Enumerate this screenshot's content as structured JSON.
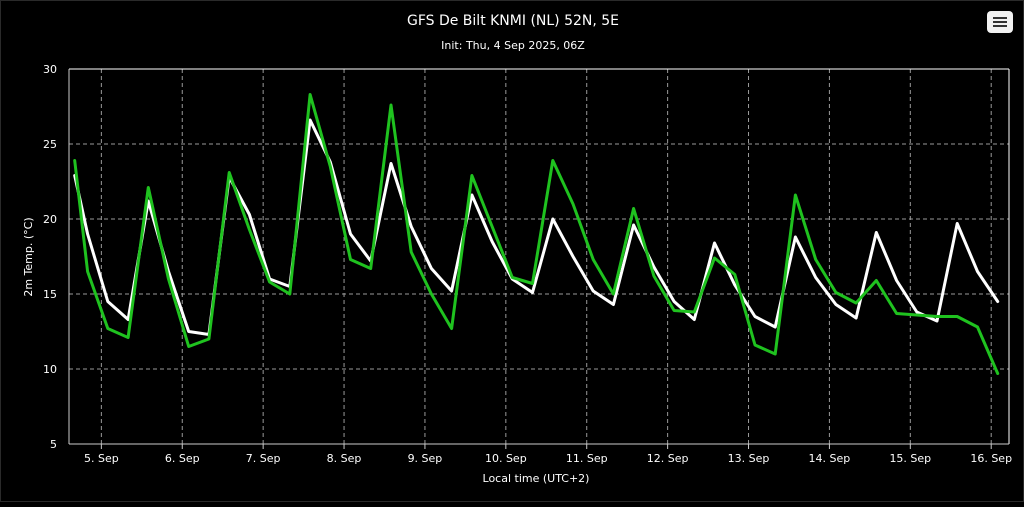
{
  "chart_data": {
    "type": "line",
    "title": "GFS De Bilt KNMI (NL) 52N, 5E",
    "subtitle": "Init: Thu, 4 Sep 2025, 06Z",
    "xlabel": "Local time (UTC+2)",
    "ylabel": "2m Temp. (°C)",
    "ylim": [
      5,
      30
    ],
    "yticks": [
      5,
      10,
      15,
      20,
      25,
      30
    ],
    "xlim": [
      4.6,
      16.22
    ],
    "xticks": [
      {
        "x": 5,
        "label": "5. Sep"
      },
      {
        "x": 6,
        "label": "6. Sep"
      },
      {
        "x": 7,
        "label": "7. Sep"
      },
      {
        "x": 8,
        "label": "8. Sep"
      },
      {
        "x": 9,
        "label": "9. Sep"
      },
      {
        "x": 10,
        "label": "10. Sep"
      },
      {
        "x": 11,
        "label": "11. Sep"
      },
      {
        "x": 12,
        "label": "12. Sep"
      },
      {
        "x": 13,
        "label": "13. Sep"
      },
      {
        "x": 14,
        "label": "14. Sep"
      },
      {
        "x": 15,
        "label": "15. Sep"
      },
      {
        "x": 16,
        "label": "16. Sep"
      }
    ],
    "grid": true,
    "series": [
      {
        "color": "#ffffff",
        "points": [
          [
            4.67,
            22.9
          ],
          [
            4.83,
            19.0
          ],
          [
            5.08,
            14.5
          ],
          [
            5.33,
            13.3
          ],
          [
            5.58,
            21.2
          ],
          [
            5.83,
            16.5
          ],
          [
            6.08,
            12.5
          ],
          [
            6.33,
            12.3
          ],
          [
            6.58,
            22.8
          ],
          [
            6.83,
            20.3
          ],
          [
            7.08,
            16.0
          ],
          [
            7.33,
            15.5
          ],
          [
            7.58,
            26.6
          ],
          [
            7.83,
            23.8
          ],
          [
            8.08,
            19.0
          ],
          [
            8.33,
            17.2
          ],
          [
            8.58,
            23.7
          ],
          [
            8.83,
            19.5
          ],
          [
            9.08,
            16.7
          ],
          [
            9.33,
            15.2
          ],
          [
            9.58,
            21.6
          ],
          [
            9.83,
            18.5
          ],
          [
            10.08,
            16.0
          ],
          [
            10.33,
            15.1
          ],
          [
            10.58,
            20.0
          ],
          [
            10.83,
            17.5
          ],
          [
            11.08,
            15.2
          ],
          [
            11.33,
            14.3
          ],
          [
            11.58,
            19.6
          ],
          [
            11.83,
            16.8
          ],
          [
            12.08,
            14.5
          ],
          [
            12.33,
            13.3
          ],
          [
            12.58,
            18.4
          ],
          [
            12.83,
            15.6
          ],
          [
            13.08,
            13.5
          ],
          [
            13.33,
            12.8
          ],
          [
            13.58,
            18.8
          ],
          [
            13.83,
            16.1
          ],
          [
            14.08,
            14.3
          ],
          [
            14.33,
            13.4
          ],
          [
            14.58,
            19.1
          ],
          [
            14.83,
            15.9
          ],
          [
            15.08,
            13.8
          ],
          [
            15.33,
            13.2
          ],
          [
            15.58,
            19.7
          ],
          [
            15.83,
            16.5
          ],
          [
            16.08,
            14.5
          ]
        ]
      },
      {
        "color": "#1fc21f",
        "points": [
          [
            4.67,
            23.9
          ],
          [
            4.83,
            16.5
          ],
          [
            5.08,
            12.7
          ],
          [
            5.33,
            12.1
          ],
          [
            5.58,
            22.1
          ],
          [
            5.83,
            16.0
          ],
          [
            6.08,
            11.5
          ],
          [
            6.33,
            12.0
          ],
          [
            6.58,
            23.1
          ],
          [
            6.83,
            19.3
          ],
          [
            7.08,
            15.8
          ],
          [
            7.33,
            15.0
          ],
          [
            7.58,
            28.3
          ],
          [
            7.83,
            23.5
          ],
          [
            8.08,
            17.3
          ],
          [
            8.33,
            16.7
          ],
          [
            8.58,
            27.6
          ],
          [
            8.83,
            17.8
          ],
          [
            9.08,
            15.0
          ],
          [
            9.33,
            12.7
          ],
          [
            9.58,
            22.9
          ],
          [
            9.83,
            19.5
          ],
          [
            10.08,
            16.1
          ],
          [
            10.33,
            15.7
          ],
          [
            10.58,
            23.9
          ],
          [
            10.83,
            21.0
          ],
          [
            11.08,
            17.3
          ],
          [
            11.33,
            15.0
          ],
          [
            11.58,
            20.7
          ],
          [
            11.83,
            16.2
          ],
          [
            12.08,
            13.9
          ],
          [
            12.33,
            13.8
          ],
          [
            12.58,
            17.4
          ],
          [
            12.83,
            16.3
          ],
          [
            13.08,
            11.6
          ],
          [
            13.33,
            11.0
          ],
          [
            13.58,
            21.6
          ],
          [
            13.83,
            17.3
          ],
          [
            14.08,
            15.1
          ],
          [
            14.33,
            14.4
          ],
          [
            14.58,
            15.9
          ],
          [
            14.83,
            13.7
          ],
          [
            15.08,
            13.6
          ],
          [
            15.33,
            13.5
          ],
          [
            15.58,
            13.5
          ],
          [
            15.83,
            12.8
          ],
          [
            16.08,
            9.7
          ]
        ]
      }
    ]
  },
  "menu": {
    "icon": "hamburger-menu-icon"
  }
}
